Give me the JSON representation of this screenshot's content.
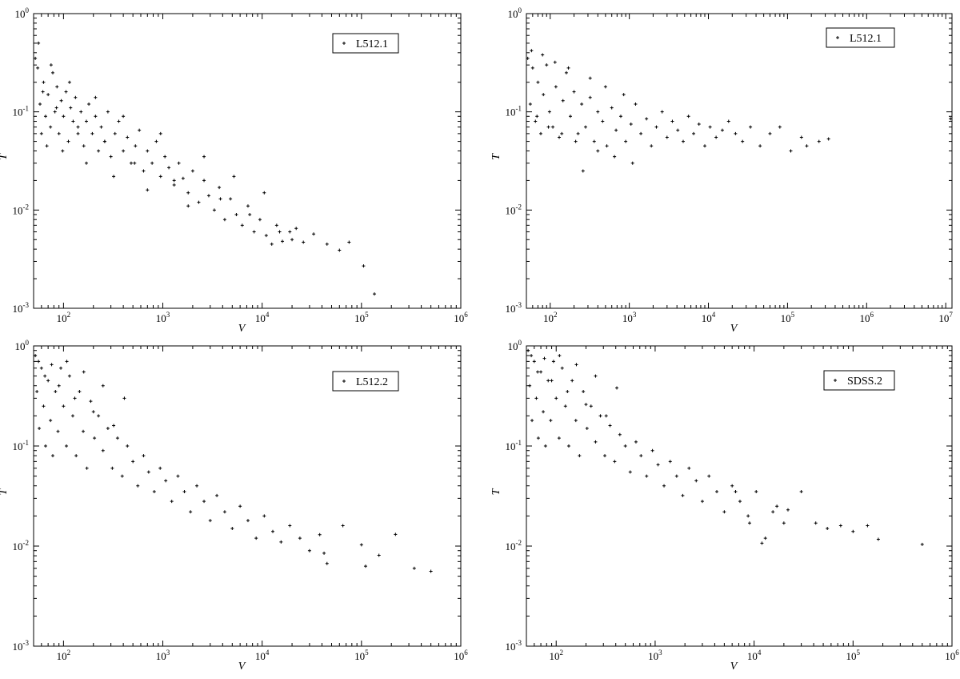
{
  "chart_data": [
    {
      "type": "scatter",
      "xlabel": "V",
      "ylabel": "T",
      "xscale": "log",
      "yscale": "log",
      "xlim": [
        50,
        1000000
      ],
      "ylim": [
        0.001,
        1
      ],
      "xticks": [
        {
          "val": 100,
          "exp": "2"
        },
        {
          "val": 1000,
          "exp": "3"
        },
        {
          "val": 10000,
          "exp": "4"
        },
        {
          "val": 100000,
          "exp": "5"
        },
        {
          "val": 1000000,
          "exp": "6"
        }
      ],
      "yticks": [
        {
          "val": 0.001,
          "exp": "-3"
        },
        {
          "val": 0.01,
          "exp": "-2"
        },
        {
          "val": 0.1,
          "exp": "-1"
        },
        {
          "val": 1,
          "exp": "0"
        }
      ],
      "legend": {
        "position": "top-right",
        "entries": [
          "L512.1"
        ]
      },
      "grid": false,
      "series": [
        {
          "name": "L512.1",
          "x": [
            52,
            55,
            58,
            60,
            63,
            66,
            70,
            74,
            78,
            82,
            86,
            90,
            95,
            100,
            106,
            112,
            118,
            125,
            132,
            140,
            150,
            160,
            170,
            180,
            195,
            210,
            225,
            240,
            260,
            280,
            300,
            330,
            360,
            400,
            440,
            480,
            530,
            580,
            640,
            700,
            780,
            860,
            950,
            1050,
            1150,
            1300,
            1450,
            1600,
            1800,
            2000,
            2300,
            2600,
            2900,
            3300,
            3700,
            4200,
            4800,
            5500,
            6300,
            7200,
            8300,
            9500,
            11000,
            12500,
            14000,
            16000,
            19000,
            22000,
            26000,
            33000,
            45000,
            60000,
            75000,
            105000,
            135000,
            56,
            62,
            68,
            75,
            85,
            98,
            115,
            140,
            170,
            210,
            260,
            320,
            400,
            520,
            700,
            950,
            1300,
            1800,
            2600,
            3800,
            5200,
            7500,
            10500,
            15000,
            20000
          ],
          "y": [
            0.35,
            0.28,
            0.12,
            0.06,
            0.2,
            0.09,
            0.15,
            0.07,
            0.25,
            0.1,
            0.18,
            0.06,
            0.13,
            0.09,
            0.16,
            0.05,
            0.11,
            0.08,
            0.14,
            0.06,
            0.1,
            0.045,
            0.08,
            0.12,
            0.06,
            0.09,
            0.04,
            0.07,
            0.05,
            0.1,
            0.035,
            0.06,
            0.08,
            0.04,
            0.055,
            0.03,
            0.045,
            0.065,
            0.025,
            0.04,
            0.03,
            0.05,
            0.022,
            0.035,
            0.027,
            0.018,
            0.03,
            0.021,
            0.015,
            0.025,
            0.012,
            0.02,
            0.014,
            0.01,
            0.017,
            0.008,
            0.013,
            0.009,
            0.007,
            0.011,
            0.006,
            0.008,
            0.0055,
            0.0045,
            0.007,
            0.0048,
            0.006,
            0.0065,
            0.0047,
            0.0057,
            0.0045,
            0.0039,
            0.0047,
            0.0027,
            0.0014,
            0.5,
            0.16,
            0.045,
            0.3,
            0.11,
            0.04,
            0.2,
            0.07,
            0.03,
            0.14,
            0.05,
            0.022,
            0.09,
            0.03,
            0.016,
            0.06,
            0.02,
            0.011,
            0.035,
            0.013,
            0.022,
            0.009,
            0.015,
            0.006,
            0.005
          ]
        }
      ]
    },
    {
      "type": "scatter",
      "xlabel": "V",
      "ylabel": "T",
      "xscale": "log",
      "yscale": "log",
      "xlim": [
        50,
        12000000
      ],
      "ylim": [
        0.001,
        1
      ],
      "xticks": [
        {
          "val": 100,
          "exp": "2"
        },
        {
          "val": 1000,
          "exp": "3"
        },
        {
          "val": 10000,
          "exp": "4"
        },
        {
          "val": 100000,
          "exp": "5"
        },
        {
          "val": 1000000,
          "exp": "6"
        },
        {
          "val": 10000000,
          "exp": "7"
        }
      ],
      "yticks": [
        {
          "val": 0.001,
          "exp": "-3"
        },
        {
          "val": 0.01,
          "exp": "-2"
        },
        {
          "val": 0.1,
          "exp": "-1"
        },
        {
          "val": 1,
          "exp": "0"
        }
      ],
      "legend": {
        "position": "top-right",
        "entries": [
          "L512.1"
        ]
      },
      "grid": false,
      "series": [
        {
          "name": "L512.1",
          "x": [
            52,
            56,
            60,
            65,
            70,
            76,
            82,
            90,
            98,
            108,
            118,
            130,
            145,
            160,
            180,
            200,
            225,
            250,
            280,
            320,
            360,
            400,
            460,
            520,
            600,
            680,
            780,
            900,
            1050,
            1200,
            1400,
            1650,
            1900,
            2200,
            2600,
            3000,
            3500,
            4100,
            4800,
            5600,
            6500,
            7600,
            9000,
            10500,
            12500,
            15000,
            18000,
            22000,
            27000,
            34000,
            45000,
            60000,
            80000,
            110000,
            150000,
            175000,
            250000,
            330000,
            11500000,
            58,
            68,
            80,
            95,
            115,
            140,
            170,
            210,
            260,
            320,
            400,
            500,
            650,
            850,
            1100
          ],
          "y": [
            0.35,
            0.12,
            0.28,
            0.08,
            0.2,
            0.06,
            0.15,
            0.3,
            0.1,
            0.07,
            0.18,
            0.055,
            0.13,
            0.25,
            0.09,
            0.16,
            0.06,
            0.12,
            0.07,
            0.14,
            0.05,
            0.1,
            0.08,
            0.045,
            0.11,
            0.065,
            0.09,
            0.05,
            0.075,
            0.12,
            0.06,
            0.085,
            0.045,
            0.07,
            0.1,
            0.055,
            0.08,
            0.065,
            0.05,
            0.09,
            0.06,
            0.075,
            0.045,
            0.07,
            0.055,
            0.065,
            0.08,
            0.06,
            0.05,
            0.07,
            0.045,
            0.06,
            0.07,
            0.04,
            0.055,
            0.045,
            0.05,
            0.053,
            0.085,
            0.42,
            0.09,
            0.38,
            0.07,
            0.32,
            0.06,
            0.28,
            0.05,
            0.025,
            0.22,
            0.04,
            0.18,
            0.035,
            0.15,
            0.03
          ]
        }
      ]
    },
    {
      "type": "scatter",
      "xlabel": "V",
      "ylabel": "T",
      "xscale": "log",
      "yscale": "log",
      "xlim": [
        50,
        1000000
      ],
      "ylim": [
        0.001,
        1
      ],
      "xticks": [
        {
          "val": 100,
          "exp": "2"
        },
        {
          "val": 1000,
          "exp": "3"
        },
        {
          "val": 10000,
          "exp": "4"
        },
        {
          "val": 100000,
          "exp": "5"
        },
        {
          "val": 1000000,
          "exp": "6"
        }
      ],
      "yticks": [
        {
          "val": 0.001,
          "exp": "-3"
        },
        {
          "val": 0.01,
          "exp": "-2"
        },
        {
          "val": 0.1,
          "exp": "-1"
        },
        {
          "val": 1,
          "exp": "0"
        }
      ],
      "legend": {
        "position": "top-right",
        "entries": [
          "L512.2"
        ]
      },
      "grid": false,
      "series": [
        {
          "name": "L512.2",
          "x": [
            52,
            54,
            57,
            60,
            63,
            66,
            70,
            74,
            78,
            83,
            88,
            94,
            100,
            107,
            115,
            124,
            134,
            145,
            158,
            172,
            188,
            205,
            225,
            250,
            280,
            310,
            350,
            390,
            440,
            500,
            560,
            640,
            720,
            820,
            940,
            1070,
            1230,
            1420,
            1650,
            1900,
            2200,
            2600,
            3000,
            3500,
            4200,
            5000,
            6000,
            7200,
            8700,
            10500,
            12800,
            15500,
            19000,
            24000,
            30000,
            38000,
            42000,
            45000,
            65000,
            100000,
            110000,
            150000,
            220000,
            340000,
            500000,
            56,
            65,
            76,
            90,
            108,
            130,
            160,
            200,
            250,
            320,
            410
          ],
          "y": [
            0.8,
            0.35,
            0.15,
            0.6,
            0.25,
            0.1,
            0.45,
            0.18,
            0.08,
            0.35,
            0.14,
            0.6,
            0.25,
            0.1,
            0.5,
            0.2,
            0.08,
            0.35,
            0.14,
            0.06,
            0.28,
            0.12,
            0.2,
            0.09,
            0.15,
            0.06,
            0.12,
            0.05,
            0.1,
            0.07,
            0.04,
            0.08,
            0.055,
            0.035,
            0.06,
            0.045,
            0.028,
            0.05,
            0.035,
            0.022,
            0.04,
            0.028,
            0.018,
            0.032,
            0.022,
            0.015,
            0.025,
            0.018,
            0.012,
            0.02,
            0.014,
            0.011,
            0.016,
            0.012,
            0.009,
            0.013,
            0.0085,
            0.0067,
            0.016,
            0.0103,
            0.0063,
            0.0081,
            0.0131,
            0.006,
            0.0056,
            0.7,
            0.5,
            0.65,
            0.4,
            0.7,
            0.3,
            0.55,
            0.22,
            0.4,
            0.16,
            0.3
          ]
        }
      ]
    },
    {
      "type": "scatter",
      "xlabel": "V",
      "ylabel": "T",
      "xscale": "log",
      "yscale": "log",
      "xlim": [
        50,
        1000000
      ],
      "ylim": [
        0.001,
        1
      ],
      "xticks": [
        {
          "val": 100,
          "exp": "2"
        },
        {
          "val": 1000,
          "exp": "3"
        },
        {
          "val": 10000,
          "exp": "4"
        },
        {
          "val": 100000,
          "exp": "5"
        },
        {
          "val": 1000000,
          "exp": "6"
        }
      ],
      "yticks": [
        {
          "val": 0.001,
          "exp": "-3"
        },
        {
          "val": 0.01,
          "exp": "-2"
        },
        {
          "val": 0.1,
          "exp": "-1"
        },
        {
          "val": 1,
          "exp": "0"
        }
      ],
      "legend": {
        "position": "top-right",
        "entries": [
          "SDSS.2"
        ]
      },
      "grid": false,
      "series": [
        {
          "name": "SDSS.2",
          "x": [
            52,
            54,
            57,
            60,
            63,
            66,
            70,
            74,
            78,
            83,
            88,
            94,
            100,
            107,
            115,
            124,
            134,
            145,
            158,
            172,
            188,
            205,
            225,
            250,
            280,
            310,
            350,
            390,
            440,
            500,
            560,
            640,
            720,
            820,
            940,
            1070,
            1230,
            1420,
            1650,
            1900,
            2200,
            2600,
            3000,
            3500,
            4200,
            5000,
            6000,
            7200,
            8700,
            10500,
            12000,
            15500,
            20000,
            22000,
            30000,
            42000,
            55000,
            75000,
            100000,
            140000,
            180000,
            500000,
            56,
            65,
            76,
            90,
            108,
            130,
            160,
            200,
            250,
            320,
            410,
            6500,
            9000,
            13000,
            17000
          ],
          "y": [
            0.9,
            0.4,
            0.18,
            0.7,
            0.3,
            0.12,
            0.55,
            0.22,
            0.1,
            0.45,
            0.18,
            0.7,
            0.3,
            0.12,
            0.6,
            0.25,
            0.1,
            0.45,
            0.18,
            0.08,
            0.35,
            0.15,
            0.25,
            0.11,
            0.2,
            0.08,
            0.16,
            0.07,
            0.13,
            0.1,
            0.055,
            0.11,
            0.08,
            0.05,
            0.09,
            0.065,
            0.04,
            0.07,
            0.05,
            0.032,
            0.06,
            0.045,
            0.028,
            0.05,
            0.035,
            0.022,
            0.04,
            0.028,
            0.02,
            0.035,
            0.0107,
            0.022,
            0.017,
            0.023,
            0.035,
            0.017,
            0.015,
            0.016,
            0.014,
            0.016,
            0.0117,
            0.0104,
            0.8,
            0.55,
            0.75,
            0.45,
            0.8,
            0.35,
            0.65,
            0.26,
            0.5,
            0.2,
            0.38,
            0.035,
            0.017,
            0.012,
            0.025
          ]
        }
      ]
    }
  ]
}
